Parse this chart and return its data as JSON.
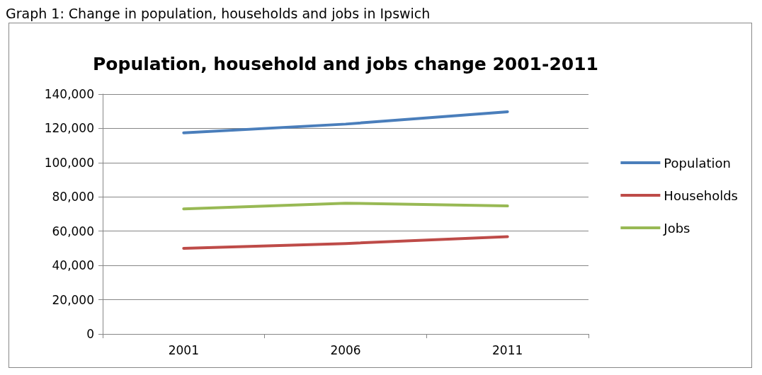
{
  "chart_data": {
    "type": "line",
    "title": "Population, household and jobs change 2001-2011",
    "annotations": [
      "Graph 1: Change in population, households and jobs in Ipswich"
    ],
    "categories": [
      "2001",
      "2006",
      "2011"
    ],
    "series": [
      {
        "name": "Population",
        "color": "#4a7ebb",
        "values": [
          117400,
          122500,
          129700
        ]
      },
      {
        "name": "Households",
        "color": "#be4b48",
        "values": [
          50000,
          52800,
          56800
        ]
      },
      {
        "name": "Jobs",
        "color": "#98b954",
        "values": [
          73000,
          76300,
          74700
        ]
      }
    ],
    "ylim": [
      0,
      140000
    ],
    "yticks": [
      0,
      {
        "value": 20000,
        "label": "20,000"
      },
      {
        "value": 40000,
        "label": "40,000"
      },
      {
        "value": 60000,
        "label": "60,000"
      },
      {
        "value": 80000,
        "label": "80,000"
      },
      {
        "value": 100000,
        "label": "100,000"
      },
      {
        "value": 120000,
        "label": "120,000"
      },
      {
        "value": 140000,
        "label": "140,000"
      }
    ],
    "grid": "y",
    "legend": "right",
    "marker": "none",
    "line_style": "solid"
  }
}
